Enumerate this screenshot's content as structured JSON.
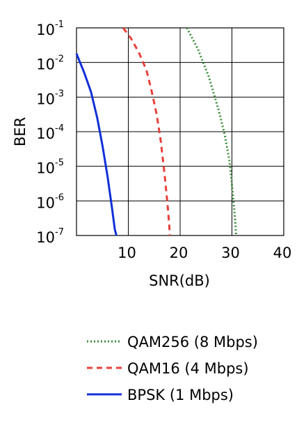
{
  "chart_data": {
    "type": "line",
    "xlabel": "SNR(dB)",
    "ylabel": "BER",
    "xlim": [
      0,
      40
    ],
    "ylim_exponent": [
      -7,
      -1
    ],
    "y_scale": "log",
    "x_ticks": [
      {
        "value": 10,
        "label": "10"
      },
      {
        "value": 20,
        "label": "20"
      },
      {
        "value": 30,
        "label": "30"
      },
      {
        "value": 40,
        "label": "40"
      }
    ],
    "y_ticks": [
      {
        "exp": -1,
        "base": "10",
        "sup": "-1"
      },
      {
        "exp": -2,
        "base": "10",
        "sup": "-2"
      },
      {
        "exp": -3,
        "base": "10",
        "sup": "-3"
      },
      {
        "exp": -4,
        "base": "10",
        "sup": "-4"
      },
      {
        "exp": -5,
        "base": "10",
        "sup": "-5"
      },
      {
        "exp": -6,
        "base": "10",
        "sup": "-6"
      },
      {
        "exp": -7,
        "base": "10",
        "sup": "-7"
      }
    ],
    "grid": true,
    "legend_position": "bottom",
    "series": [
      {
        "name": "QAM256 (8 Mbps)",
        "color": "#3a8f3a",
        "style": "dotted",
        "points": [
          [
            21.3,
            0.1
          ],
          [
            23.4,
            0.025
          ],
          [
            25.5,
            0.004
          ],
          [
            26.7,
            0.001
          ],
          [
            27.7,
            0.0003
          ],
          [
            28.7,
            7e-05
          ],
          [
            29.5,
            1.5e-05
          ],
          [
            29.9,
            4e-06
          ],
          [
            30.3,
            1e-06
          ],
          [
            30.6,
            3e-07
          ],
          [
            30.8,
            1e-07
          ]
        ]
      },
      {
        "name": "QAM16 (4 Mbps)",
        "color": "#e8403a",
        "style": "dashed",
        "points": [
          [
            9.0,
            0.1
          ],
          [
            10.5,
            0.05
          ],
          [
            12.0,
            0.02
          ],
          [
            13.5,
            0.006
          ],
          [
            14.5,
            0.0015
          ],
          [
            15.5,
            0.0003
          ],
          [
            16.3,
            5e-05
          ],
          [
            17.0,
            6e-06
          ],
          [
            17.5,
            1e-06
          ],
          [
            17.9,
            2e-07
          ],
          [
            18.0,
            1e-07
          ]
        ]
      },
      {
        "name": "BPSK (1 Mbps)",
        "color": "#1030d8",
        "style": "solid",
        "points": [
          [
            0,
            0.018
          ],
          [
            1.5,
            0.005
          ],
          [
            2.8,
            0.0014
          ],
          [
            4.0,
            0.00025
          ],
          [
            5.0,
            4e-05
          ],
          [
            6.0,
            5e-06
          ],
          [
            6.8,
            7e-07
          ],
          [
            7.4,
            1.5e-07
          ],
          [
            7.7,
            1e-07
          ]
        ]
      }
    ]
  }
}
